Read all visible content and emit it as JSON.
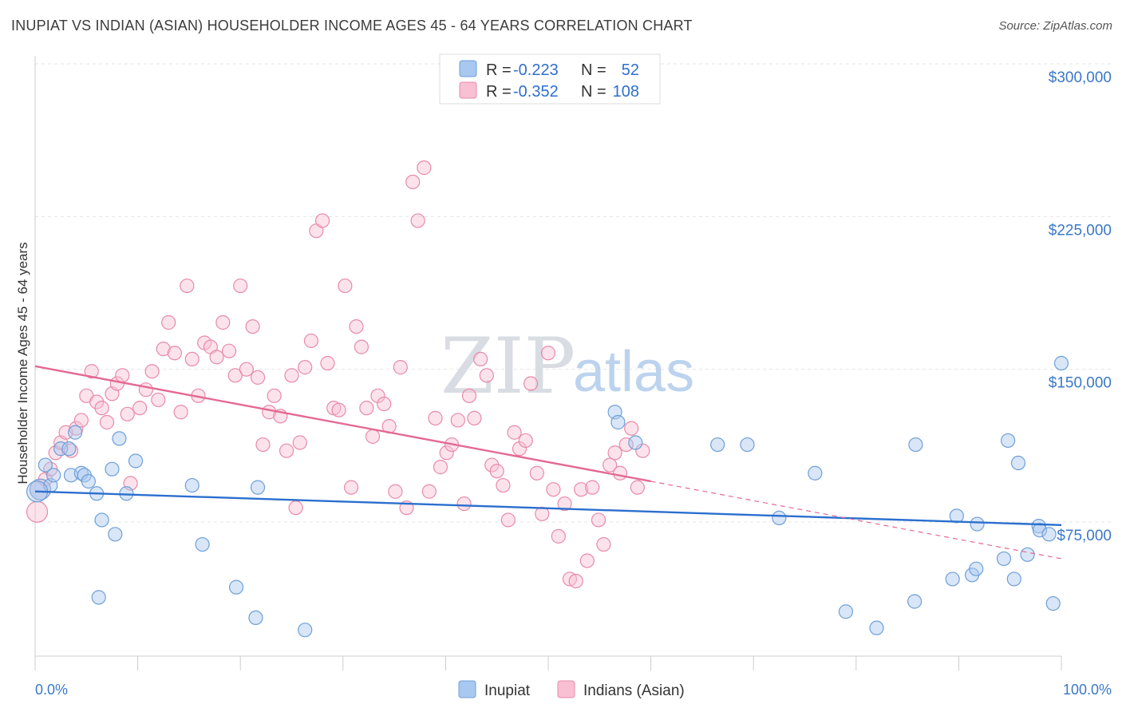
{
  "title": "INUPIAT VS INDIAN (ASIAN) HOUSEHOLDER INCOME AGES 45 - 64 YEARS CORRELATION CHART",
  "source": "Source: ZipAtlas.com",
  "watermark": {
    "zip": "ZIP",
    "atlas": "atlas"
  },
  "legend_top": [
    {
      "r_label": "R =",
      "r_value": "-0.223",
      "n_label": "N =",
      "n_value": "52",
      "color": "#a8c8f0",
      "stroke": "#6f9fd8"
    },
    {
      "r_label": "R =",
      "r_value": "-0.352",
      "n_label": "N =",
      "n_value": "108",
      "color": "#f8c0d2",
      "stroke": "#e88aa8"
    }
  ],
  "legend_bottom": [
    {
      "label": "Inupiat",
      "color": "#a8c8f0",
      "stroke": "#6f9fd8"
    },
    {
      "label": "Indians (Asian)",
      "color": "#f8c0d2",
      "stroke": "#e88aa8"
    }
  ],
  "chart_data": {
    "type": "scatter",
    "title": "INUPIAT VS INDIAN (ASIAN) HOUSEHOLDER INCOME AGES 45 - 64 YEARS CORRELATION CHART",
    "xlabel": "",
    "ylabel": "Householder Income Ages 45 - 64 years",
    "xlim": [
      0,
      100
    ],
    "ylim": [
      15000,
      315000
    ],
    "x_tick_labels": [
      "0.0%",
      "100.0%"
    ],
    "y_ticks": [
      75000,
      150000,
      225000,
      300000
    ],
    "y_tick_labels": [
      "$75,000",
      "$150,000",
      "$225,000",
      "$300,000"
    ],
    "grid": true,
    "legend_position": "top-center",
    "series": [
      {
        "name": "Inupiat",
        "color": "#a8c8f0",
        "stroke": "#6f9fd8",
        "line_color": "#2b6fce",
        "trend": {
          "x0": 0,
          "y0": 90000,
          "x1": 100,
          "y1": 73500
        },
        "points": [
          [
            0.5,
            91000
          ],
          [
            1.0,
            103000
          ],
          [
            1.5,
            93000
          ],
          [
            1.8,
            98000
          ],
          [
            2.5,
            111000
          ],
          [
            3.3,
            111000
          ],
          [
            3.5,
            98000
          ],
          [
            3.9,
            119000
          ],
          [
            4.5,
            99000
          ],
          [
            4.8,
            98000
          ],
          [
            5.2,
            95000
          ],
          [
            6.0,
            89000
          ],
          [
            6.2,
            38000
          ],
          [
            6.5,
            76000
          ],
          [
            7.5,
            101000
          ],
          [
            7.8,
            69000
          ],
          [
            8.2,
            116000
          ],
          [
            8.9,
            89000
          ],
          [
            9.8,
            105000
          ],
          [
            15.3,
            93000
          ],
          [
            16.3,
            64000
          ],
          [
            19.6,
            43000
          ],
          [
            21.5,
            28000
          ],
          [
            21.7,
            92000
          ],
          [
            26.3,
            22000
          ],
          [
            56.5,
            129000
          ],
          [
            56.8,
            124000
          ],
          [
            58.5,
            114000
          ],
          [
            66.5,
            113000
          ],
          [
            69.4,
            113000
          ],
          [
            72.5,
            77000
          ],
          [
            76.0,
            99000
          ],
          [
            79.0,
            31000
          ],
          [
            82.0,
            23000
          ],
          [
            85.7,
            36000
          ],
          [
            85.8,
            113000
          ],
          [
            89.4,
            47000
          ],
          [
            89.8,
            78000
          ],
          [
            91.3,
            49000
          ],
          [
            91.8,
            74000
          ],
          [
            91.7,
            52000
          ],
          [
            94.4,
            57000
          ],
          [
            94.8,
            115000
          ],
          [
            95.4,
            47000
          ],
          [
            95.8,
            104000
          ],
          [
            96.7,
            59000
          ],
          [
            97.8,
            73000
          ],
          [
            97.9,
            71000
          ],
          [
            98.8,
            69000
          ],
          [
            99.2,
            35000
          ],
          [
            100.0,
            153000
          ],
          [
            0.2,
            90000
          ]
        ]
      },
      {
        "name": "Indians (Asian)",
        "color": "#f8c0d2",
        "stroke": "#e88aa8",
        "line_color": "#e46a93",
        "trend": {
          "x0": 0,
          "y0": 151500,
          "x1": 60,
          "y1": 95000
        },
        "trend_dashed": {
          "x0": 60,
          "y0": 95000,
          "x1": 100,
          "y1": 57000
        },
        "points": [
          [
            0.2,
            80000
          ],
          [
            0.5,
            91000
          ],
          [
            1.0,
            96000
          ],
          [
            1.5,
            101000
          ],
          [
            2.0,
            109000
          ],
          [
            2.5,
            114000
          ],
          [
            3.0,
            119000
          ],
          [
            3.5,
            110000
          ],
          [
            4.0,
            121000
          ],
          [
            4.5,
            125000
          ],
          [
            5.0,
            137000
          ],
          [
            5.5,
            149000
          ],
          [
            6.0,
            134000
          ],
          [
            6.5,
            131000
          ],
          [
            7.0,
            124000
          ],
          [
            7.5,
            138000
          ],
          [
            8.0,
            143000
          ],
          [
            8.5,
            147000
          ],
          [
            9.0,
            128000
          ],
          [
            9.3,
            94000
          ],
          [
            10.2,
            131000
          ],
          [
            10.8,
            140000
          ],
          [
            11.4,
            149000
          ],
          [
            12.0,
            135000
          ],
          [
            12.5,
            160000
          ],
          [
            13.0,
            173000
          ],
          [
            13.6,
            158000
          ],
          [
            14.2,
            129000
          ],
          [
            14.8,
            191000
          ],
          [
            15.3,
            155000
          ],
          [
            15.9,
            137000
          ],
          [
            16.5,
            163000
          ],
          [
            17.1,
            161000
          ],
          [
            17.7,
            156000
          ],
          [
            18.3,
            173000
          ],
          [
            18.9,
            159000
          ],
          [
            19.5,
            147000
          ],
          [
            20.0,
            191000
          ],
          [
            20.6,
            150000
          ],
          [
            21.2,
            171000
          ],
          [
            21.7,
            146000
          ],
          [
            22.2,
            113000
          ],
          [
            22.8,
            129000
          ],
          [
            23.3,
            137000
          ],
          [
            23.9,
            127000
          ],
          [
            24.5,
            110000
          ],
          [
            25.0,
            147000
          ],
          [
            25.4,
            82000
          ],
          [
            25.8,
            114000
          ],
          [
            26.3,
            151000
          ],
          [
            26.9,
            164000
          ],
          [
            27.4,
            218000
          ],
          [
            28.0,
            223000
          ],
          [
            28.5,
            153000
          ],
          [
            29.1,
            131000
          ],
          [
            29.6,
            130000
          ],
          [
            30.2,
            191000
          ],
          [
            30.8,
            92000
          ],
          [
            31.3,
            171000
          ],
          [
            31.8,
            161000
          ],
          [
            32.3,
            131000
          ],
          [
            32.9,
            117000
          ],
          [
            33.4,
            137000
          ],
          [
            34.0,
            133000
          ],
          [
            34.5,
            122000
          ],
          [
            35.1,
            90000
          ],
          [
            35.6,
            151000
          ],
          [
            36.2,
            82000
          ],
          [
            36.8,
            242000
          ],
          [
            37.3,
            223000
          ],
          [
            37.9,
            249000
          ],
          [
            38.4,
            90000
          ],
          [
            39.0,
            126000
          ],
          [
            39.5,
            102000
          ],
          [
            40.1,
            109000
          ],
          [
            40.6,
            113000
          ],
          [
            41.2,
            125000
          ],
          [
            41.8,
            84000
          ],
          [
            42.3,
            137000
          ],
          [
            42.8,
            126000
          ],
          [
            43.4,
            155000
          ],
          [
            44.0,
            147000
          ],
          [
            44.5,
            103000
          ],
          [
            45.0,
            100000
          ],
          [
            45.6,
            93000
          ],
          [
            46.1,
            76000
          ],
          [
            46.7,
            119000
          ],
          [
            47.2,
            111000
          ],
          [
            47.8,
            115000
          ],
          [
            48.3,
            143000
          ],
          [
            48.9,
            99000
          ],
          [
            49.4,
            79000
          ],
          [
            50.0,
            158000
          ],
          [
            50.5,
            91000
          ],
          [
            51.0,
            68000
          ],
          [
            51.6,
            84000
          ],
          [
            52.1,
            47000
          ],
          [
            52.7,
            46000
          ],
          [
            53.2,
            91000
          ],
          [
            53.8,
            56000
          ],
          [
            54.3,
            92000
          ],
          [
            54.9,
            76000
          ],
          [
            55.4,
            64000
          ],
          [
            56.0,
            103000
          ],
          [
            56.5,
            109000
          ],
          [
            57.0,
            99000
          ],
          [
            57.6,
            113000
          ],
          [
            58.1,
            121000
          ],
          [
            58.7,
            92000
          ],
          [
            59.2,
            110000
          ]
        ]
      }
    ]
  }
}
